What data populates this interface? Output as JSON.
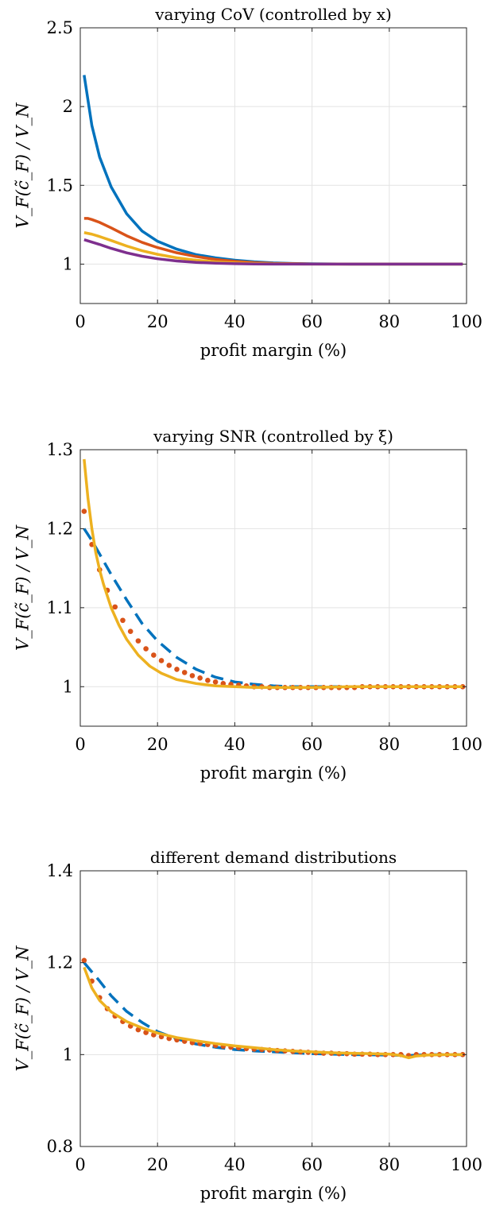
{
  "colors": {
    "blue": "#0072BD",
    "orange": "#D95319",
    "yellow": "#EDB120",
    "purple": "#7E2F8E"
  },
  "chart_data": [
    {
      "type": "line",
      "title": "varying CoV (controlled by x)",
      "xlabel": "profit margin (%)",
      "ylabel": "V_F(c̃_F) / V_N",
      "xlim": [
        0,
        100
      ],
      "ylim": [
        0.75,
        2.5
      ],
      "xticks": [
        "0",
        "20",
        "40",
        "60",
        "80",
        "100"
      ],
      "yticks": [
        "1",
        "1.5",
        "2",
        "2.5"
      ],
      "grid": true,
      "series": [
        {
          "color": "#0072BD",
          "style": "solid",
          "x": [
            1,
            3,
            5,
            8,
            12,
            16,
            20,
            25,
            30,
            35,
            40,
            45,
            50,
            55,
            60,
            70,
            80,
            90,
            99
          ],
          "y": [
            2.2,
            1.88,
            1.68,
            1.49,
            1.32,
            1.21,
            1.145,
            1.095,
            1.06,
            1.04,
            1.025,
            1.015,
            1.008,
            1.004,
            1.002,
            1.0,
            1.0,
            1.0,
            1.0
          ]
        },
        {
          "color": "#D95319",
          "style": "solid",
          "x": [
            1,
            2,
            3,
            5,
            8,
            12,
            16,
            20,
            25,
            30,
            35,
            40,
            45,
            50,
            60,
            70,
            80,
            90,
            99
          ],
          "y": [
            1.29,
            1.29,
            1.283,
            1.265,
            1.23,
            1.18,
            1.138,
            1.105,
            1.072,
            1.048,
            1.03,
            1.018,
            1.01,
            1.005,
            1.001,
            1.0,
            1.0,
            1.0,
            1.0
          ]
        },
        {
          "color": "#EDB120",
          "style": "solid",
          "x": [
            1,
            3,
            5,
            8,
            12,
            16,
            20,
            25,
            30,
            35,
            40,
            45,
            50,
            60,
            70,
            80,
            90,
            99
          ],
          "y": [
            1.2,
            1.19,
            1.175,
            1.15,
            1.115,
            1.085,
            1.062,
            1.04,
            1.025,
            1.014,
            1.008,
            1.004,
            1.002,
            1.0,
            1.0,
            1.0,
            1.0,
            1.0
          ]
        },
        {
          "color": "#7E2F8E",
          "style": "solid",
          "x": [
            1,
            3,
            5,
            8,
            12,
            16,
            20,
            25,
            30,
            35,
            40,
            45,
            50,
            60,
            70,
            80,
            90,
            99
          ],
          "y": [
            1.155,
            1.14,
            1.125,
            1.1,
            1.072,
            1.05,
            1.034,
            1.02,
            1.011,
            1.006,
            1.003,
            1.001,
            1.0,
            1.0,
            1.0,
            1.0,
            1.0,
            1.0
          ]
        }
      ]
    },
    {
      "type": "line",
      "title": "varying SNR (controlled by ξ)",
      "xlabel": "profit margin (%)",
      "ylabel": "V_F(c̃_F) / V_N",
      "xlim": [
        0,
        100
      ],
      "ylim": [
        0.95,
        1.3
      ],
      "xticks": [
        "0",
        "20",
        "40",
        "60",
        "80",
        "100"
      ],
      "yticks": [
        "1",
        "1.1",
        "1.2",
        "1.3"
      ],
      "grid": true,
      "series": [
        {
          "color": "#0072BD",
          "style": "dashed",
          "x": [
            1,
            3,
            5,
            8,
            12,
            16,
            20,
            25,
            30,
            35,
            40,
            45,
            50,
            55,
            60,
            70,
            80,
            90,
            99
          ],
          "y": [
            1.2,
            1.185,
            1.168,
            1.142,
            1.11,
            1.08,
            1.058,
            1.037,
            1.022,
            1.012,
            1.006,
            1.003,
            1.001,
            1.0,
            1.0,
            1.0,
            1.0,
            1.0,
            1.0
          ]
        },
        {
          "color": "#D95319",
          "style": "dotted",
          "x": [
            1,
            3,
            5,
            7,
            9,
            11,
            13,
            15,
            17,
            19,
            21,
            23,
            25,
            27,
            29,
            31,
            33,
            35,
            37,
            39,
            41,
            43,
            45,
            47,
            49,
            51,
            53,
            55,
            57,
            59,
            61,
            63,
            65,
            67,
            69,
            71,
            73,
            75,
            77,
            79,
            81,
            83,
            85,
            87,
            89,
            91,
            93,
            95,
            97,
            99
          ],
          "y": [
            1.222,
            1.18,
            1.148,
            1.122,
            1.101,
            1.084,
            1.07,
            1.058,
            1.048,
            1.04,
            1.033,
            1.027,
            1.022,
            1.018,
            1.014,
            1.011,
            1.008,
            1.006,
            1.004,
            1.003,
            1.002,
            1.001,
            1.0,
            1.0,
            0.999,
            0.999,
            0.999,
            0.999,
            0.999,
            0.999,
            0.999,
            0.999,
            0.999,
            0.999,
            0.999,
            0.999,
            1.0,
            1.0,
            1.0,
            1.0,
            1.0,
            1.0,
            1.0,
            1.0,
            1.0,
            1.0,
            1.0,
            1.0,
            1.0,
            1.0
          ]
        },
        {
          "color": "#EDB120",
          "style": "solid",
          "x": [
            1,
            2,
            3,
            4,
            5,
            6,
            8,
            10,
            12,
            15,
            18,
            21,
            25,
            30,
            35,
            40,
            45,
            50,
            55,
            60,
            70,
            80,
            90,
            99
          ],
          "y": [
            1.288,
            1.238,
            1.2,
            1.17,
            1.148,
            1.13,
            1.1,
            1.078,
            1.06,
            1.04,
            1.026,
            1.017,
            1.009,
            1.004,
            1.001,
            1.0,
            0.999,
            0.999,
            0.999,
            0.999,
            1.0,
            1.0,
            1.0,
            1.0
          ]
        }
      ]
    },
    {
      "type": "line",
      "title": "different demand distributions",
      "xlabel": "profit margin (%)",
      "ylabel": "V_F(c̃_F) / V_N",
      "xlim": [
        0,
        100
      ],
      "ylim": [
        0.8,
        1.4
      ],
      "xticks": [
        "0",
        "20",
        "40",
        "60",
        "80",
        "100"
      ],
      "yticks": [
        "0.8",
        "1",
        "1.2",
        "1.4"
      ],
      "grid": true,
      "series": [
        {
          "color": "#0072BD",
          "style": "dashed",
          "x": [
            1,
            3,
            5,
            8,
            12,
            16,
            20,
            25,
            30,
            35,
            40,
            45,
            50,
            55,
            60,
            70,
            80,
            85,
            90,
            99
          ],
          "y": [
            1.2,
            1.18,
            1.16,
            1.128,
            1.094,
            1.07,
            1.05,
            1.034,
            1.023,
            1.016,
            1.011,
            1.008,
            1.006,
            1.004,
            1.002,
            1.0,
            0.999,
            0.998,
            1.0,
            1.0
          ]
        },
        {
          "color": "#D95319",
          "style": "dotted",
          "x": [
            1,
            3,
            5,
            7,
            9,
            11,
            13,
            15,
            17,
            19,
            21,
            23,
            25,
            27,
            29,
            31,
            33,
            35,
            37,
            39,
            41,
            43,
            45,
            47,
            49,
            51,
            53,
            55,
            57,
            59,
            61,
            63,
            65,
            67,
            69,
            71,
            73,
            75,
            77,
            79,
            81,
            83,
            85,
            87,
            89,
            91,
            93,
            95,
            97,
            99
          ],
          "y": [
            1.205,
            1.16,
            1.124,
            1.1,
            1.084,
            1.072,
            1.062,
            1.054,
            1.048,
            1.043,
            1.039,
            1.035,
            1.032,
            1.029,
            1.026,
            1.024,
            1.022,
            1.02,
            1.018,
            1.016,
            1.015,
            1.013,
            1.012,
            1.011,
            1.01,
            1.009,
            1.008,
            1.007,
            1.006,
            1.005,
            1.004,
            1.003,
            1.003,
            1.002,
            1.002,
            1.001,
            1.001,
            1.001,
            1.0,
            1.0,
            1.0,
            1.0,
            0.998,
            1.0,
            1.0,
            1.0,
            1.0,
            1.0,
            1.0,
            1.0
          ]
        },
        {
          "color": "#EDB120",
          "style": "solid",
          "x": [
            1,
            3,
            5,
            8,
            12,
            16,
            20,
            25,
            30,
            35,
            40,
            45,
            50,
            55,
            60,
            65,
            70,
            75,
            80,
            83,
            85,
            87,
            90,
            95,
            99
          ],
          "y": [
            1.19,
            1.145,
            1.118,
            1.093,
            1.072,
            1.058,
            1.047,
            1.037,
            1.03,
            1.024,
            1.019,
            1.015,
            1.011,
            1.008,
            1.006,
            1.004,
            1.003,
            1.002,
            1.001,
            0.998,
            0.993,
            0.997,
            0.999,
            1.0,
            1.0
          ]
        }
      ]
    }
  ]
}
